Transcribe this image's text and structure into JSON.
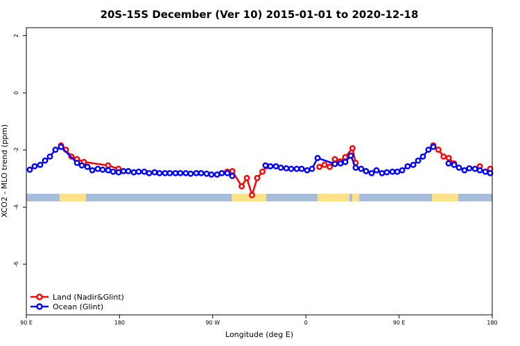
{
  "chart_data": {
    "type": "line",
    "title": "20S-15S December (Ver 10)   2015-01-01 to 2020-12-18",
    "xlabel": "Longitude (deg E)",
    "ylabel": "XCO2 - MLO trend (ppm)",
    "xlim": [
      90,
      540
    ],
    "ylim": [
      -7.77,
      2.28
    ],
    "xticks": [
      {
        "value": 90,
        "label": "90 E"
      },
      180,
      {
        "value": 270,
        "label": "90 W"
      },
      {
        "value": 360,
        "label": "0"
      },
      {
        "value": 450,
        "label": "90 E"
      },
      {
        "value": 540,
        "label": "180"
      }
    ],
    "yticks": [
      2,
      0,
      -2,
      -4,
      -6
    ],
    "legend": "bottomleft",
    "series": [
      {
        "name": "Land (Nadir&Glint)",
        "color": "#ff0000",
        "x": [
          123.5,
          128.2,
          133.5,
          138.9,
          145.6,
          169,
          179,
          230,
          284,
          289,
          298,
          303,
          308,
          313,
          318,
          322,
          350,
          373,
          378,
          383,
          388,
          393,
          398,
          405,
          408,
          450,
          483,
          488,
          493,
          498,
          503,
          515,
          528,
          533,
          538
        ],
        "values": [
          -1.84,
          -1.99,
          -2.23,
          -2.32,
          -2.42,
          -2.54,
          -2.66,
          null,
          -2.76,
          -2.74,
          -3.27,
          -2.98,
          -3.58,
          -2.98,
          -2.76,
          -2.57,
          null,
          -2.59,
          -2.52,
          -2.59,
          -2.32,
          -2.4,
          -2.25,
          -1.94,
          -2.45,
          null,
          -1.84,
          -1.99,
          -2.23,
          -2.28,
          -2.47,
          null,
          -2.57,
          null,
          -2.66
        ]
      },
      {
        "name": "Ocean (Glint)",
        "color": "#0000ff",
        "x": [
          93.3,
          98,
          103.4,
          108.1,
          112.8,
          118.1,
          123.5,
          138.9,
          143.6,
          149,
          153.7,
          159,
          163.7,
          169.1,
          173.8,
          179.1,
          183.8,
          188.5,
          193.8,
          198.5,
          203.9,
          208.6,
          213.9,
          218.6,
          224,
          228.6,
          234,
          238.7,
          244,
          248.7,
          254.1,
          258.8,
          264.1,
          268.8,
          274.2,
          278.8,
          284.2,
          288.9,
          305,
          321,
          325.7,
          331.1,
          335.8,
          341.1,
          345.8,
          351.2,
          355.9,
          361.2,
          365.9,
          371.3,
          388,
          393.4,
          398,
          403.4,
          408.1,
          413.4,
          418.1,
          423.5,
          428.2,
          433.5,
          438.2,
          443.6,
          448.3,
          453,
          458.3,
          463.7,
          468.4,
          473,
          478.4,
          483.1,
          490,
          497.8,
          503.2,
          507.9,
          513.2,
          517.9,
          523.3,
          528,
          533.3,
          538
        ],
        "values": [
          -2.69,
          -2.57,
          -2.52,
          -2.37,
          -2.23,
          -1.99,
          -1.89,
          -2.45,
          -2.54,
          -2.59,
          -2.71,
          -2.66,
          -2.69,
          -2.71,
          -2.76,
          -2.78,
          -2.74,
          -2.74,
          -2.78,
          -2.76,
          -2.76,
          -2.81,
          -2.78,
          -2.81,
          -2.81,
          -2.81,
          -2.81,
          -2.81,
          -2.81,
          -2.83,
          -2.81,
          -2.81,
          -2.83,
          -2.86,
          -2.86,
          -2.81,
          -2.81,
          -2.91,
          null,
          -2.54,
          -2.57,
          -2.57,
          -2.62,
          -2.64,
          -2.66,
          -2.66,
          -2.66,
          -2.71,
          -2.66,
          -2.28,
          -2.49,
          -2.47,
          -2.42,
          -2.2,
          -2.62,
          -2.66,
          -2.74,
          -2.81,
          -2.71,
          -2.81,
          -2.78,
          -2.76,
          -2.76,
          -2.71,
          -2.57,
          -2.52,
          -2.37,
          -2.23,
          -1.99,
          -1.89,
          null,
          -2.47,
          -2.52,
          -2.62,
          -2.71,
          -2.64,
          -2.66,
          -2.71,
          -2.76,
          -2.81
        ]
      }
    ]
  }
}
